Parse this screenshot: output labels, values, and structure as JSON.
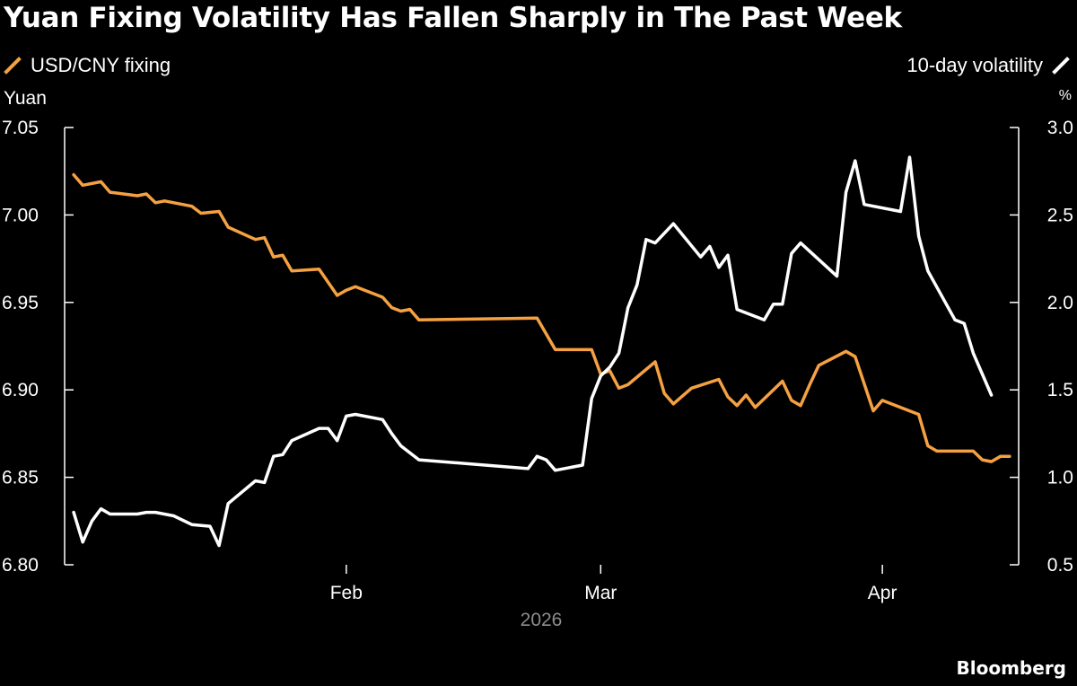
{
  "title": "Yuan Fixing Volatility Has Fallen Sharply in The Past Week",
  "brand": "Bloomberg",
  "colors": {
    "fixing": "#f5a142",
    "volatility": "#ffffff",
    "background": "#000000",
    "axis": "#ffffff"
  },
  "chart_data": {
    "type": "line",
    "title": "Yuan Fixing Volatility Has Fallen Sharply in The Past Week",
    "xlabel": "2026",
    "x_ticks": [
      "Feb",
      "Mar",
      "Apr"
    ],
    "x_tick_days": [
      31,
      59,
      90
    ],
    "xlim": [
      0,
      105
    ],
    "left_axis": {
      "label": "Yuan",
      "range": [
        6.8,
        7.05
      ],
      "ticks": [
        "6.80",
        "6.85",
        "6.90",
        "6.95",
        "7.00",
        "7.05"
      ]
    },
    "right_axis": {
      "label": "%",
      "range": [
        0.5,
        3.0
      ],
      "ticks": [
        "0.5",
        "1.0",
        "1.5",
        "2.0",
        "2.5",
        "3.0"
      ]
    },
    "legend": {
      "left": "USD/CNY fixing",
      "right": "10-day volatility"
    },
    "series": [
      {
        "name": "USD/CNY fixing",
        "axis": "left",
        "points": [
          [
            1,
            7.023
          ],
          [
            2,
            7.017
          ],
          [
            4,
            7.019
          ],
          [
            5,
            7.013
          ],
          [
            8,
            7.011
          ],
          [
            9,
            7.012
          ],
          [
            10,
            7.007
          ],
          [
            11,
            7.008
          ],
          [
            14,
            7.005
          ],
          [
            15,
            7.001
          ],
          [
            17,
            7.002
          ],
          [
            18,
            6.993
          ],
          [
            21,
            6.986
          ],
          [
            22,
            6.987
          ],
          [
            23,
            6.976
          ],
          [
            24,
            6.977
          ],
          [
            25,
            6.968
          ],
          [
            28,
            6.969
          ],
          [
            30,
            6.954
          ],
          [
            31,
            6.957
          ],
          [
            32,
            6.959
          ],
          [
            35,
            6.953
          ],
          [
            36,
            6.947
          ],
          [
            37,
            6.945
          ],
          [
            38,
            6.946
          ],
          [
            39,
            6.94
          ],
          [
            52,
            6.941
          ],
          [
            54,
            6.923
          ],
          [
            58,
            6.923
          ],
          [
            59,
            6.909
          ],
          [
            60,
            6.911
          ],
          [
            61,
            6.901
          ],
          [
            62,
            6.903
          ],
          [
            65,
            6.916
          ],
          [
            66,
            6.898
          ],
          [
            67,
            6.892
          ],
          [
            69,
            6.901
          ],
          [
            72,
            6.906
          ],
          [
            73,
            6.896
          ],
          [
            74,
            6.891
          ],
          [
            75,
            6.897
          ],
          [
            76,
            6.89
          ],
          [
            79,
            6.905
          ],
          [
            80,
            6.894
          ],
          [
            81,
            6.891
          ],
          [
            82,
            6.903
          ],
          [
            83,
            6.914
          ],
          [
            86,
            6.922
          ],
          [
            87,
            6.919
          ],
          [
            89,
            6.888
          ],
          [
            90,
            6.894
          ],
          [
            94,
            6.886
          ],
          [
            95,
            6.868
          ],
          [
            96,
            6.865
          ],
          [
            100,
            6.865
          ],
          [
            101,
            6.86
          ],
          [
            102,
            6.859
          ],
          [
            103,
            6.862
          ],
          [
            104,
            6.862
          ]
        ]
      },
      {
        "name": "10-day volatility",
        "axis": "right",
        "points": [
          [
            1,
            0.8
          ],
          [
            2,
            0.63
          ],
          [
            3,
            0.75
          ],
          [
            4,
            0.82
          ],
          [
            5,
            0.79
          ],
          [
            8,
            0.79
          ],
          [
            9,
            0.8
          ],
          [
            10,
            0.8
          ],
          [
            12,
            0.78
          ],
          [
            14,
            0.73
          ],
          [
            16,
            0.72
          ],
          [
            17,
            0.61
          ],
          [
            18,
            0.85
          ],
          [
            21,
            0.98
          ],
          [
            22,
            0.97
          ],
          [
            23,
            1.12
          ],
          [
            24,
            1.13
          ],
          [
            25,
            1.21
          ],
          [
            28,
            1.28
          ],
          [
            29,
            1.28
          ],
          [
            30,
            1.21
          ],
          [
            31,
            1.35
          ],
          [
            32,
            1.36
          ],
          [
            35,
            1.33
          ],
          [
            36,
            1.25
          ],
          [
            37,
            1.18
          ],
          [
            39,
            1.1
          ],
          [
            51,
            1.05
          ],
          [
            52,
            1.12
          ],
          [
            53,
            1.1
          ],
          [
            54,
            1.04
          ],
          [
            57,
            1.07
          ],
          [
            58,
            1.45
          ],
          [
            59,
            1.58
          ],
          [
            60,
            1.63
          ],
          [
            61,
            1.71
          ],
          [
            62,
            1.97
          ],
          [
            63,
            2.1
          ],
          [
            64,
            2.36
          ],
          [
            65,
            2.34
          ],
          [
            67,
            2.45
          ],
          [
            70,
            2.26
          ],
          [
            71,
            2.32
          ],
          [
            72,
            2.2
          ],
          [
            73,
            2.27
          ],
          [
            74,
            1.96
          ],
          [
            77,
            1.9
          ],
          [
            78,
            1.99
          ],
          [
            79,
            1.99
          ],
          [
            80,
            2.28
          ],
          [
            81,
            2.34
          ],
          [
            85,
            2.15
          ],
          [
            86,
            2.63
          ],
          [
            87,
            2.81
          ],
          [
            88,
            2.56
          ],
          [
            92,
            2.52
          ],
          [
            93,
            2.83
          ],
          [
            94,
            2.38
          ],
          [
            95,
            2.18
          ],
          [
            98,
            1.9
          ],
          [
            99,
            1.88
          ],
          [
            100,
            1.71
          ],
          [
            102,
            1.47
          ]
        ]
      }
    ]
  }
}
